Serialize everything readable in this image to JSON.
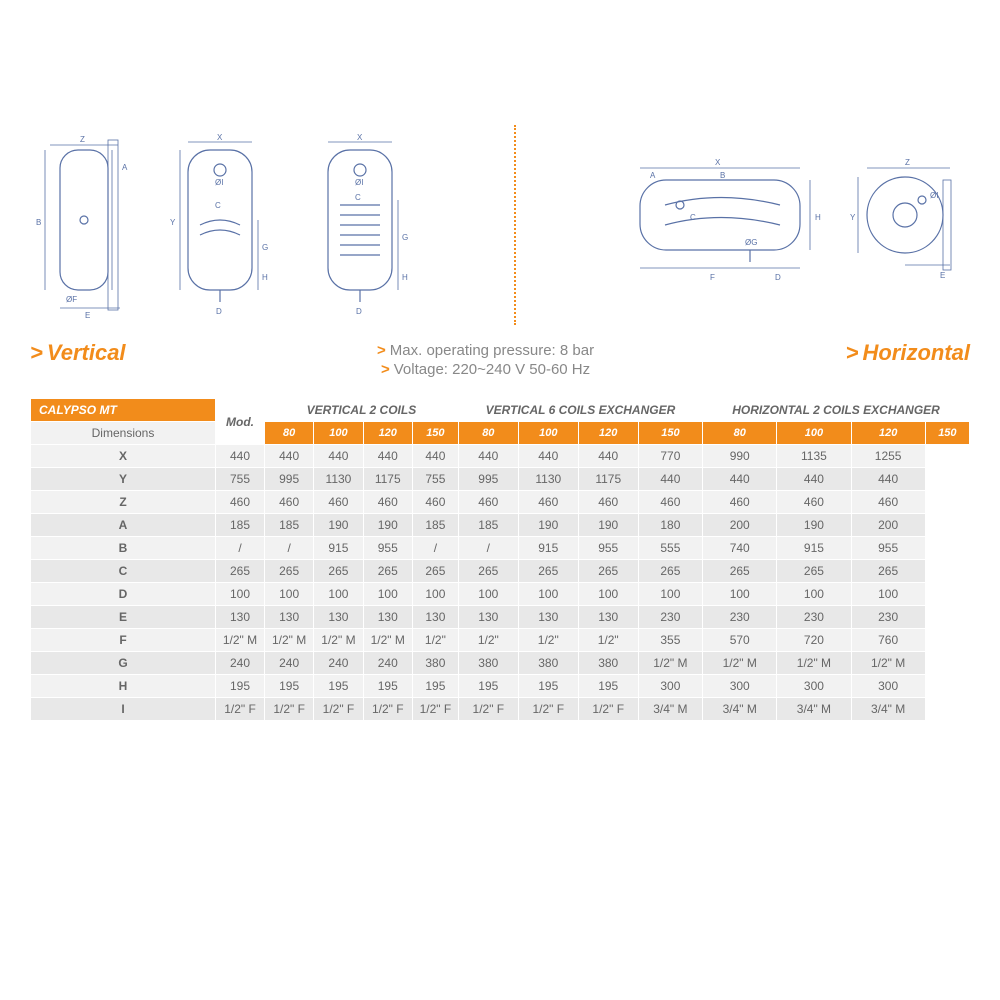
{
  "labels": {
    "vertical": "Vertical",
    "horizontal": "Horizontal",
    "note1": "Max. operating pressure: 8 bar",
    "note2": "Voltage: 220~240 V 50-60 Hz",
    "chevron": ">"
  },
  "table": {
    "title": "CALYPSO MT",
    "mod_label": "Mod.",
    "side_label": "Dimensions",
    "groups": [
      {
        "name": "VERTICAL 2 COILS",
        "sizes": [
          "80",
          "100",
          "120",
          "150"
        ]
      },
      {
        "name": "VERTICAL 6 COILS EXCHANGER",
        "sizes": [
          "80",
          "100",
          "120",
          "150"
        ]
      },
      {
        "name": "HORIZONTAL 2 COILS EXCHANGER",
        "sizes": [
          "80",
          "100",
          "120",
          "150"
        ]
      }
    ],
    "rows": [
      {
        "k": "X",
        "v": [
          "440",
          "440",
          "440",
          "440",
          "440",
          "440",
          "440",
          "440",
          "770",
          "990",
          "1135",
          "1255"
        ]
      },
      {
        "k": "Y",
        "v": [
          "755",
          "995",
          "1130",
          "1175",
          "755",
          "995",
          "1130",
          "1175",
          "440",
          "440",
          "440",
          "440"
        ]
      },
      {
        "k": "Z",
        "v": [
          "460",
          "460",
          "460",
          "460",
          "460",
          "460",
          "460",
          "460",
          "460",
          "460",
          "460",
          "460"
        ]
      },
      {
        "k": "A",
        "v": [
          "185",
          "185",
          "190",
          "190",
          "185",
          "185",
          "190",
          "190",
          "180",
          "200",
          "190",
          "200"
        ]
      },
      {
        "k": "B",
        "v": [
          "/",
          "/",
          "915",
          "955",
          "/",
          "/",
          "915",
          "955",
          "555",
          "740",
          "915",
          "955"
        ]
      },
      {
        "k": "C",
        "v": [
          "265",
          "265",
          "265",
          "265",
          "265",
          "265",
          "265",
          "265",
          "265",
          "265",
          "265",
          "265"
        ]
      },
      {
        "k": "D",
        "v": [
          "100",
          "100",
          "100",
          "100",
          "100",
          "100",
          "100",
          "100",
          "100",
          "100",
          "100",
          "100"
        ]
      },
      {
        "k": "E",
        "v": [
          "130",
          "130",
          "130",
          "130",
          "130",
          "130",
          "130",
          "130",
          "230",
          "230",
          "230",
          "230"
        ]
      },
      {
        "k": "F",
        "v": [
          "1/2\" M",
          "1/2\" M",
          "1/2\" M",
          "1/2\" M",
          "1/2\"",
          "1/2\"",
          "1/2\"",
          "1/2\"",
          "355",
          "570",
          "720",
          "760"
        ]
      },
      {
        "k": "G",
        "v": [
          "240",
          "240",
          "240",
          "240",
          "380",
          "380",
          "380",
          "380",
          "1/2\" M",
          "1/2\" M",
          "1/2\" M",
          "1/2\" M"
        ]
      },
      {
        "k": "H",
        "v": [
          "195",
          "195",
          "195",
          "195",
          "195",
          "195",
          "195",
          "195",
          "300",
          "300",
          "300",
          "300"
        ]
      },
      {
        "k": "I",
        "v": [
          "1/2\" F",
          "1/2\" F",
          "1/2\" F",
          "1/2\" F",
          "1/2\" F",
          "1/2\" F",
          "1/2\" F",
          "1/2\" F",
          "3/4\" M",
          "3/4\" M",
          "3/4\" M",
          "3/4\" M"
        ]
      }
    ]
  },
  "colors": {
    "accent": "#f28c1b",
    "diagram_stroke": "#5971a6",
    "row_a": "#f2f2f2",
    "row_b": "#e8e8e8",
    "text": "#666666",
    "background": "#ffffff"
  }
}
